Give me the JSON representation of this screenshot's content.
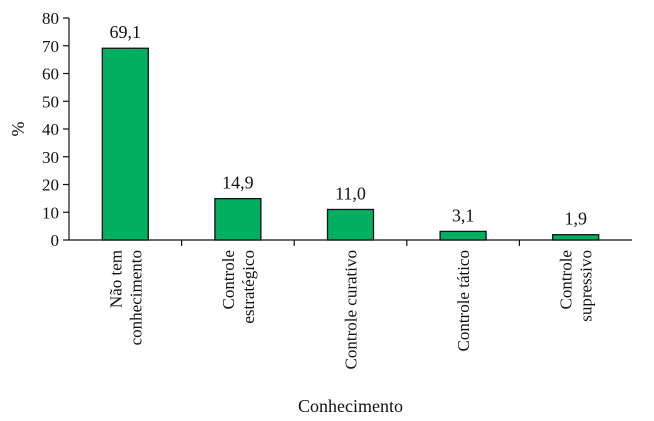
{
  "chart_data": {
    "type": "bar",
    "categories": [
      [
        "Não tem",
        "conhecimento"
      ],
      [
        "Controle",
        "estratégico"
      ],
      [
        "Controle curativo"
      ],
      [
        "Controle tático"
      ],
      [
        "Controle",
        "supressivo"
      ]
    ],
    "values": [
      69.1,
      14.9,
      11.0,
      3.1,
      1.9
    ],
    "data_labels": [
      "69,1",
      "14,9",
      "11,0",
      "3,1",
      "1,9"
    ],
    "xlabel": "Conhecimento",
    "ylabel": "%",
    "ylim": [
      0,
      80
    ],
    "yticks": [
      0,
      10,
      20,
      30,
      40,
      50,
      60,
      70,
      80
    ],
    "grid": false,
    "bar_color": "#00b060",
    "bar_edge_color": "#111111"
  }
}
